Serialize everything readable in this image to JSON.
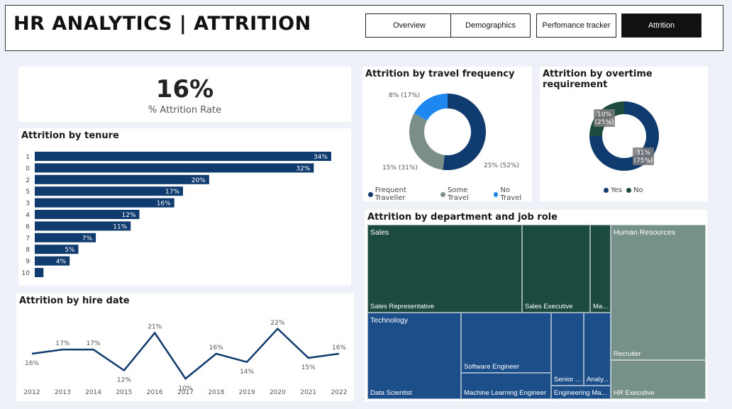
{
  "header": {
    "title": "HR ANALYTICS | ATTRITION",
    "nav": [
      {
        "label": "Overview",
        "active": false
      },
      {
        "label": "Demographics",
        "active": false
      },
      {
        "label": "Perfomance tracker",
        "active": false
      },
      {
        "label": "Attrition",
        "active": true
      }
    ]
  },
  "kpi": {
    "value": "16%",
    "label": "% Attrition Rate"
  },
  "colors": {
    "navy": "#0f3b6e",
    "dark_green": "#1d4a3e",
    "grey_green": "#7b8f88",
    "bright_blue": "#1e88f0",
    "tech_blue": "#1c4f8a",
    "hr_grey": "#76908a"
  },
  "tenure": {
    "title": "Attrition by tenure",
    "chart_data": {
      "type": "bar",
      "orientation": "horizontal",
      "categories": [
        "1",
        "0",
        "2",
        "5",
        "3",
        "4",
        "6",
        "7",
        "8",
        "9",
        "10"
      ],
      "values": [
        34,
        32,
        20,
        17,
        16,
        12,
        11,
        7,
        5,
        4,
        1
      ],
      "labels": [
        "34%",
        "32%",
        "20%",
        "17%",
        "16%",
        "12%",
        "11%",
        "7%",
        "5%",
        "4%",
        ""
      ]
    }
  },
  "hire": {
    "title": "Attrition by hire date",
    "chart_data": {
      "type": "line",
      "x": [
        "2012",
        "2013",
        "2014",
        "2015",
        "2016",
        "2017",
        "2018",
        "2019",
        "2020",
        "2021",
        "2022"
      ],
      "values": [
        16,
        17,
        17,
        12,
        21,
        10,
        16,
        14,
        22,
        15,
        16
      ],
      "labels": [
        "16%",
        "17%",
        "17%",
        "12%",
        "21%",
        "10%",
        "16%",
        "14%",
        "22%",
        "15%",
        "16%"
      ]
    }
  },
  "travel": {
    "title": "Attrition by travel frequency",
    "chart_data": {
      "type": "pie",
      "donut": true,
      "categories": [
        "Frequent Traveller",
        "Some Travel",
        "No Travel"
      ],
      "values": [
        52,
        31,
        17
      ],
      "labels": [
        "25% (52%)",
        "15% (31%)",
        "8% (17%)"
      ]
    }
  },
  "overtime": {
    "title": "Attrition by overtime requirement",
    "chart_data": {
      "type": "pie",
      "donut": true,
      "categories": [
        "Yes",
        "No"
      ],
      "values": [
        75,
        25
      ],
      "labels": [
        "31%\n(75%)",
        "10%\n(25%)"
      ]
    }
  },
  "dept": {
    "title": "Attrition by department and job role",
    "groups": {
      "sales": "Sales",
      "tech": "Technology",
      "hr": "Human Resources"
    },
    "roles": {
      "sales_rep": "Sales Representative",
      "sales_exec": "Sales Executive",
      "sales_ma": "Ma...",
      "data_sci": "Data Scientist",
      "soft_eng": "Software Engineer",
      "ml_eng": "Machine Learning Engineer",
      "senior": "Senior ...",
      "analy": "Analy...",
      "eng_ma": "Engineering Ma...",
      "recruiter": "Recruiter",
      "hr_exec": "HR Executive"
    }
  }
}
